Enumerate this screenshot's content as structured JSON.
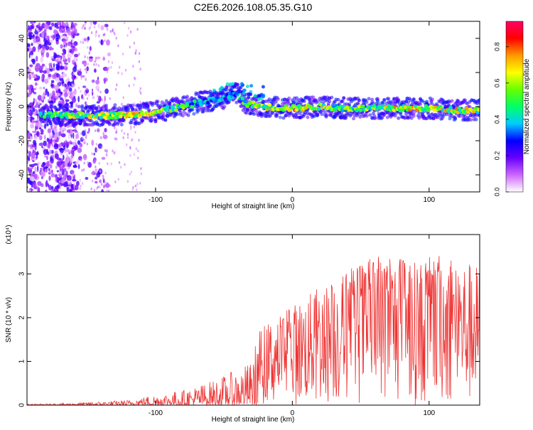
{
  "title": "C2E6.2026.108.05.35.G10",
  "chart_data": [
    {
      "type": "heatmap",
      "xlabel": "Height of straight line (km)",
      "ylabel": "Frequency (Hz)",
      "xlim": [
        -194,
        137
      ],
      "ylim": [
        -50,
        50
      ],
      "xticks": [
        -100,
        0,
        100
      ],
      "yticks": [
        -40,
        -20,
        0,
        20,
        40
      ],
      "colorbar": {
        "label": "Normalized spectral amplitude",
        "range": [
          0.0,
          0.94
        ],
        "ticks": [
          0.0,
          0.2,
          0.4,
          0.6,
          0.8
        ],
        "colormap": [
          "#ffffff",
          "#cc66ff",
          "#6600ff",
          "#0000ff",
          "#00ccff",
          "#00ff66",
          "#66ff00",
          "#ffff00",
          "#ff9900",
          "#ff0000",
          "#ff0066"
        ]
      },
      "ridge": [
        {
          "x": -180,
          "y": -5,
          "amp": 0.55
        },
        {
          "x": -160,
          "y": -5,
          "amp": 0.6
        },
        {
          "x": -140,
          "y": -5,
          "amp": 0.6
        },
        {
          "x": -120,
          "y": -5,
          "amp": 0.65
        },
        {
          "x": -100,
          "y": -3,
          "amp": 0.6
        },
        {
          "x": -80,
          "y": 0,
          "amp": 0.5
        },
        {
          "x": -70,
          "y": 2,
          "amp": 0.4
        },
        {
          "x": -50,
          "y": 5,
          "amp": 0.35
        },
        {
          "x": -40,
          "y": 8,
          "amp": 0.35
        },
        {
          "x": -35,
          "y": 2,
          "amp": 0.5
        },
        {
          "x": -20,
          "y": 0,
          "amp": 0.6
        },
        {
          "x": 0,
          "y": -1,
          "amp": 0.65
        },
        {
          "x": 20,
          "y": 0,
          "amp": 0.6
        },
        {
          "x": 40,
          "y": -1,
          "amp": 0.55
        },
        {
          "x": 60,
          "y": -1,
          "amp": 0.6
        },
        {
          "x": 80,
          "y": -1,
          "amp": 0.65
        },
        {
          "x": 100,
          "y": -1,
          "amp": 0.6
        },
        {
          "x": 120,
          "y": -2,
          "amp": 0.65
        },
        {
          "x": 137,
          "y": -2,
          "amp": 0.6
        }
      ]
    },
    {
      "type": "line",
      "xlabel": "Height of straight line (km)",
      "ylabel": "SNR (10 * v/v)",
      "scale_label": "(x10⁴)",
      "xlim": [
        -194,
        137
      ],
      "ylim": [
        0,
        3.9
      ],
      "xticks": [
        -100,
        0,
        100
      ],
      "yticks": [
        0,
        1,
        2,
        3
      ],
      "color": "#ee3333",
      "envelope": [
        {
          "x": -194,
          "y": 0.02
        },
        {
          "x": -160,
          "y": 0.05
        },
        {
          "x": -120,
          "y": 0.12
        },
        {
          "x": -100,
          "y": 0.25
        },
        {
          "x": -80,
          "y": 0.35
        },
        {
          "x": -60,
          "y": 0.55
        },
        {
          "x": -45,
          "y": 0.75
        },
        {
          "x": -30,
          "y": 1.0
        },
        {
          "x": -25,
          "y": 1.7
        },
        {
          "x": -10,
          "y": 2.1
        },
        {
          "x": 10,
          "y": 2.5
        },
        {
          "x": 30,
          "y": 2.9
        },
        {
          "x": 50,
          "y": 3.3
        },
        {
          "x": 70,
          "y": 3.5
        },
        {
          "x": 90,
          "y": 3.3
        },
        {
          "x": 110,
          "y": 3.5
        },
        {
          "x": 137,
          "y": 3.2
        }
      ]
    }
  ]
}
